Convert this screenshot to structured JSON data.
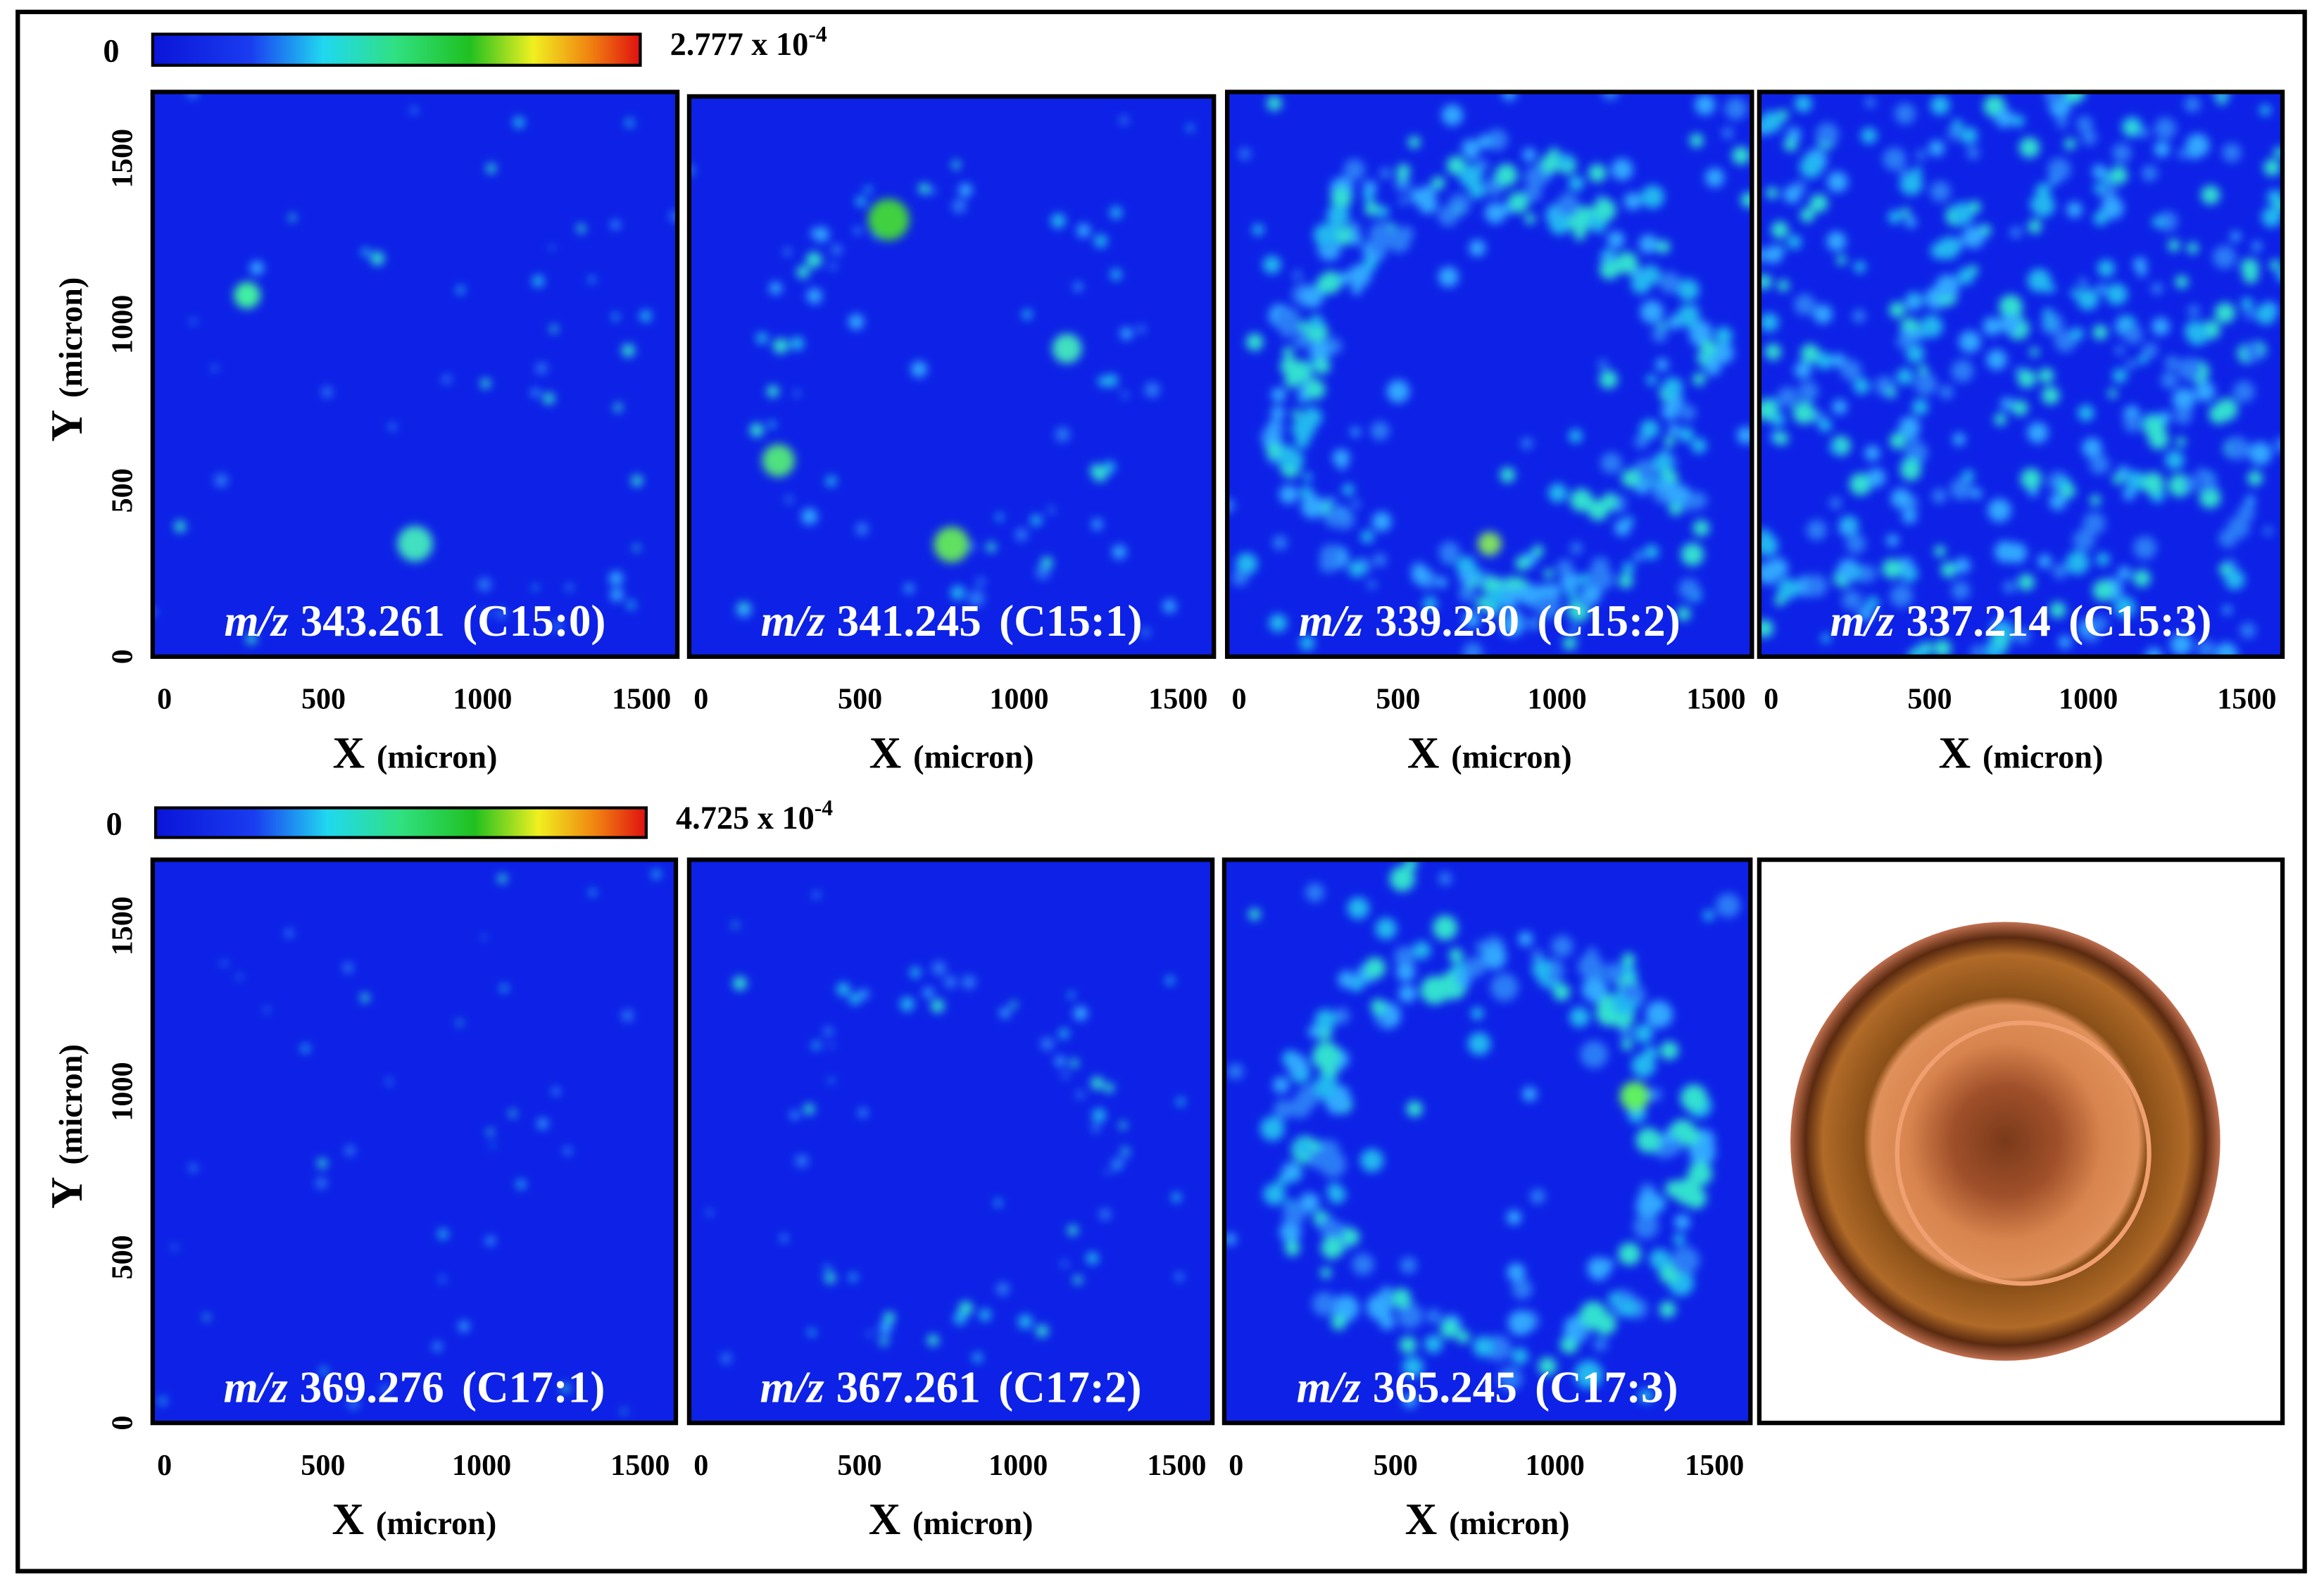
{
  "colorbars": [
    {
      "min": 0,
      "max_label": "2.777 x 10",
      "max_exponent": "-4"
    },
    {
      "min": 0,
      "max_label": "4.725 x 10",
      "max_exponent": "-4"
    }
  ],
  "chart_data": [
    {
      "type": "heatmap",
      "label_prefix": "m/z",
      "mz": "343.261",
      "lipid": "(C15:0)",
      "x_label": "X",
      "x_unit": "(micron)",
      "y_label": "Y",
      "y_unit": "(micron)",
      "xlim": [
        0,
        1650
      ],
      "ylim": [
        0,
        1700
      ],
      "xticks": [
        0,
        500,
        1000,
        1500
      ],
      "yticks": [
        0,
        500,
        1000,
        1500
      ]
    },
    {
      "type": "heatmap",
      "label_prefix": "m/z",
      "mz": "341.245",
      "lipid": "(C15:1)",
      "x_label": "X",
      "x_unit": "(micron)",
      "xlim": [
        0,
        1650
      ],
      "ylim": [
        0,
        1700
      ],
      "xticks": [
        0,
        500,
        1000,
        1500
      ]
    },
    {
      "type": "heatmap",
      "label_prefix": "m/z",
      "mz": "339.230",
      "lipid": "(C15:2)",
      "x_label": "X",
      "x_unit": "(micron)",
      "xlim": [
        0,
        1650
      ],
      "ylim": [
        0,
        1700
      ],
      "xticks": [
        0,
        500,
        1000,
        1500
      ]
    },
    {
      "type": "heatmap",
      "label_prefix": "m/z",
      "mz": "337.214",
      "lipid": "(C15:3)",
      "x_label": "X",
      "x_unit": "(micron)",
      "xlim": [
        0,
        1650
      ],
      "ylim": [
        0,
        1700
      ],
      "xticks": [
        0,
        500,
        1000,
        1500
      ]
    },
    {
      "type": "heatmap",
      "label_prefix": "m/z",
      "mz": "369.276",
      "lipid": "(C17:1)",
      "x_label": "X",
      "x_unit": "(micron)",
      "y_label": "Y",
      "y_unit": "(micron)",
      "xlim": [
        0,
        1650
      ],
      "ylim": [
        0,
        1700
      ],
      "xticks": [
        0,
        500,
        1000,
        1500
      ],
      "yticks": [
        0,
        500,
        1000,
        1500
      ]
    },
    {
      "type": "heatmap",
      "label_prefix": "m/z",
      "mz": "367.261",
      "lipid": "(C17:2)",
      "x_label": "X",
      "x_unit": "(micron)",
      "xlim": [
        0,
        1650
      ],
      "ylim": [
        0,
        1700
      ],
      "xticks": [
        0,
        500,
        1000,
        1500
      ]
    },
    {
      "type": "heatmap",
      "label_prefix": "m/z",
      "mz": "365.245",
      "lipid": "(C17:3)",
      "x_label": "X",
      "x_unit": "(micron)",
      "xlim": [
        0,
        1650
      ],
      "ylim": [
        0,
        1700
      ],
      "xticks": [
        0,
        500,
        1000,
        1500
      ]
    }
  ]
}
